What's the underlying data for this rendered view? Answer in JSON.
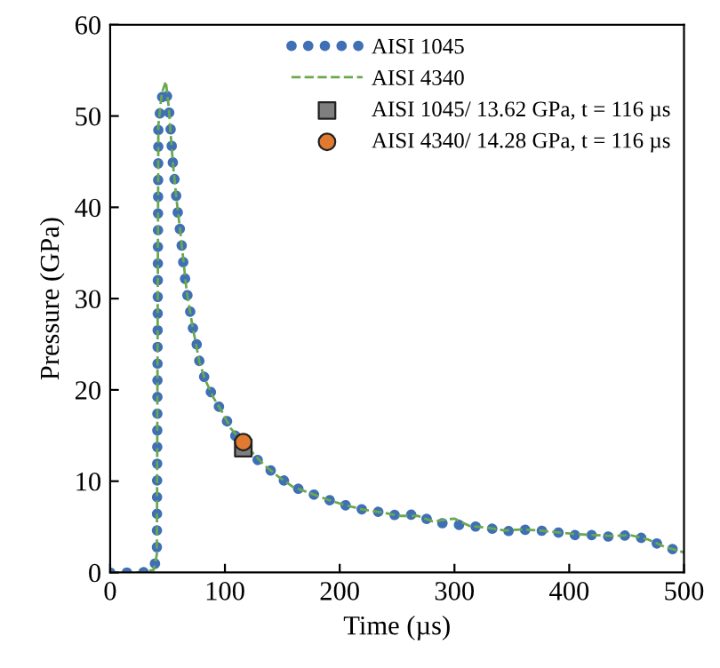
{
  "chart_data": {
    "type": "line",
    "xlabel": "Time (µs)",
    "ylabel": "Pressure (GPa)",
    "xlim": [
      0,
      500
    ],
    "ylim": [
      0,
      60
    ],
    "xticks": [
      0,
      100,
      200,
      300,
      400,
      500
    ],
    "yticks": [
      0,
      10,
      20,
      30,
      40,
      50,
      60
    ],
    "grid": false,
    "legend": "top right",
    "series": [
      {
        "name": "AISI 1045",
        "color": "#3f6fb5",
        "line_style": "dotted",
        "x": [
          0,
          28,
          38,
          40.7,
          42,
          45,
          48.5,
          51,
          52.6,
          54.6,
          56.2,
          57.7,
          59.3,
          61.5,
          64.5,
          66.6,
          69.2,
          71.7,
          75.4,
          77.9,
          82.5,
          89.8,
          97.5,
          105,
          116,
          134.7,
          146.6,
          159,
          174,
          189,
          204,
          220,
          236,
          252,
          268,
          281,
          297,
          313,
          329,
          344,
          358,
          374,
          389,
          405,
          421,
          437,
          453,
          469,
          483,
          498
        ],
        "values": [
          0,
          0,
          0.3,
          2,
          49,
          52,
          53,
          51,
          48.7,
          44.9,
          42.9,
          41,
          38.9,
          36.9,
          32.9,
          30.9,
          29,
          27,
          25,
          23,
          21.2,
          19.2,
          17.6,
          15.8,
          13.6,
          11.7,
          10.5,
          9.4,
          8.7,
          8.0,
          7.4,
          6.9,
          6.6,
          6.2,
          6.4,
          5.5,
          5.3,
          5.1,
          4.9,
          4.5,
          4.7,
          4.6,
          4.4,
          4.1,
          4.1,
          3.9,
          4.1,
          3.6,
          2.8,
          2.3
        ]
      },
      {
        "name": "AISI 4340",
        "color": "#6aa84f",
        "line_style": "dashed",
        "x": [
          0,
          28,
          38,
          40.7,
          42,
          45,
          48.5,
          51,
          54.6,
          57.7,
          61.5,
          66.6,
          71.7,
          77.9,
          82.5,
          89.8,
          97.5,
          105,
          116,
          134.7,
          146.6,
          159,
          174,
          189,
          204,
          220,
          236,
          252,
          268,
          281,
          300,
          313,
          329,
          344,
          358,
          374,
          389,
          405,
          421,
          437,
          453,
          469,
          483,
          500
        ],
        "values": [
          0,
          0,
          0.3,
          2,
          49,
          52.5,
          53.8,
          51,
          44.9,
          41,
          36.9,
          30.9,
          27,
          23,
          21.2,
          19.2,
          17.6,
          15.8,
          14.2,
          11.7,
          10.5,
          9.4,
          8.7,
          8.0,
          7.4,
          6.9,
          6.6,
          6.2,
          6.2,
          5.6,
          5.9,
          5.1,
          4.9,
          4.6,
          4.7,
          4.6,
          4.4,
          4.2,
          4.1,
          4.0,
          4.1,
          3.6,
          2.8,
          2.2
        ]
      },
      {
        "name": "AISI 1045/ 13.62 GPa, t = 116 µs",
        "type": "scatter",
        "marker": "square",
        "color": "#7f7f7f",
        "x": [
          116
        ],
        "values": [
          13.62
        ]
      },
      {
        "name": "AISI 4340/ 14.28 GPa, t = 116 µs",
        "type": "scatter",
        "marker": "circle",
        "color": "#e07a30",
        "x": [
          116
        ],
        "values": [
          14.28
        ]
      }
    ]
  }
}
